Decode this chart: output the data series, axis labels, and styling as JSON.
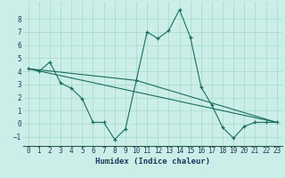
{
  "xlabel": "Humidex (Indice chaleur)",
  "bg_color": "#cceee8",
  "grid_color": "#aaddcc",
  "line_color": "#1a6e5e",
  "xlim": [
    -0.5,
    23.5
  ],
  "ylim": [
    -1.7,
    9.3
  ],
  "xticks": [
    0,
    1,
    2,
    3,
    4,
    5,
    6,
    7,
    8,
    9,
    10,
    11,
    12,
    13,
    14,
    15,
    16,
    17,
    18,
    19,
    20,
    21,
    22,
    23
  ],
  "yticks": [
    -1,
    0,
    1,
    2,
    3,
    4,
    5,
    6,
    7,
    8
  ],
  "series1_x": [
    0,
    1,
    2,
    3,
    4,
    5,
    6,
    7,
    8,
    9,
    10,
    11,
    12,
    13,
    14,
    15,
    16,
    17,
    18,
    19,
    20,
    21,
    22,
    23
  ],
  "series1_y": [
    4.2,
    4.0,
    4.7,
    3.1,
    2.7,
    1.9,
    0.1,
    0.1,
    -1.2,
    -0.4,
    3.3,
    7.0,
    6.5,
    7.1,
    8.7,
    6.6,
    2.8,
    1.4,
    -0.3,
    -1.1,
    -0.2,
    0.1,
    0.1,
    0.1
  ],
  "series2_x": [
    0,
    23
  ],
  "series2_y": [
    4.2,
    0.1
  ],
  "series3_x": [
    0,
    10,
    23
  ],
  "series3_y": [
    4.2,
    3.3,
    0.1
  ]
}
